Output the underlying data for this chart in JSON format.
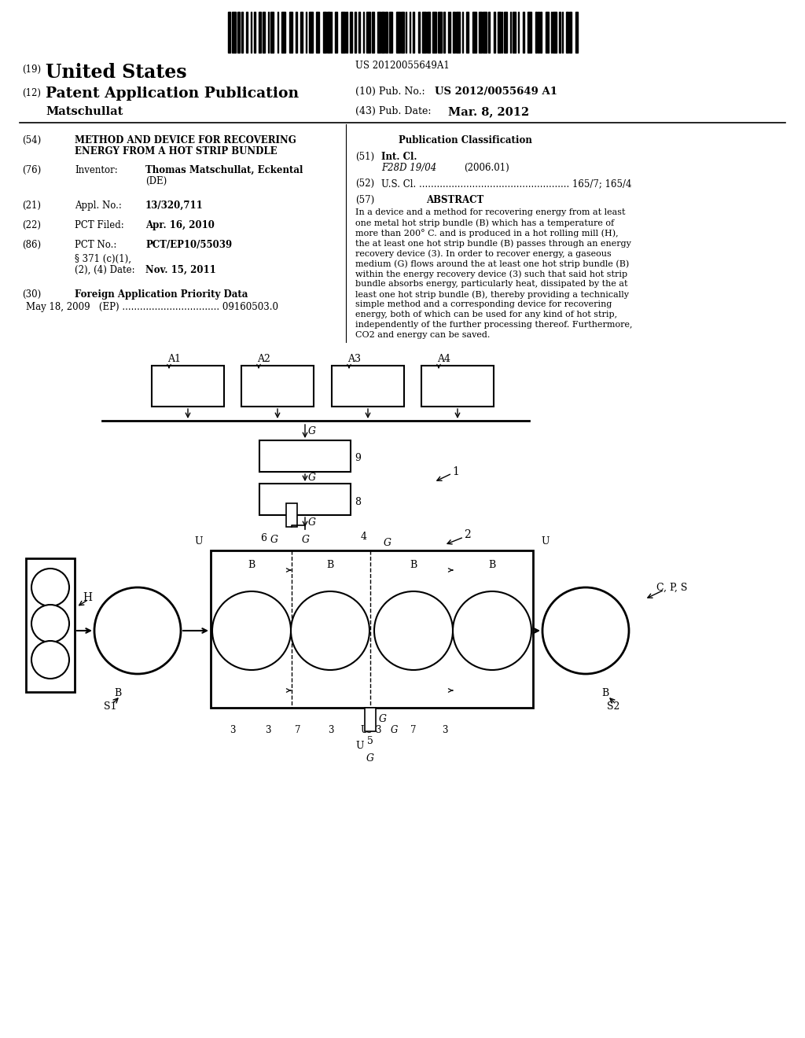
{
  "bg_color": "#ffffff",
  "barcode_text": "US 20120055649A1",
  "title19_num": "(19)",
  "title19_text": "United States",
  "title12_num": "(12)",
  "title12_text": "Patent Application Publication",
  "pub_no_label": "(10) Pub. No.:",
  "pub_no_value": "US 2012/0055649 A1",
  "pub_date_label": "(43) Pub. Date:",
  "pub_date_value": "Mar. 8, 2012",
  "inventor_name": "Matschullat",
  "field54_num": "(54)",
  "field54_line1": "METHOD AND DEVICE FOR RECOVERING",
  "field54_line2": "ENERGY FROM A HOT STRIP BUNDLE",
  "field76_num": "(76)",
  "field76_label": "Inventor:",
  "field76_line1": "Thomas Matschullat, Eckental",
  "field76_line2": "(DE)",
  "field21_num": "(21)",
  "field21_label": "Appl. No.:",
  "field21_value": "13/320,711",
  "field22_num": "(22)",
  "field22_label": "PCT Filed:",
  "field22_value": "Apr. 16, 2010",
  "field86_num": "(86)",
  "field86_label": "PCT No.:",
  "field86_value": "PCT/EP10/55039",
  "field86b_line1": "§ 371 (c)(1),",
  "field86b_line2": "(2), (4) Date:",
  "field86b_value": "Nov. 15, 2011",
  "field30_num": "(30)",
  "field30_label": "Foreign Application Priority Data",
  "field30_value": "May 18, 2009   (EP) ................................. 09160503.0",
  "pub_class_title": "Publication Classification",
  "field51_num": "(51)",
  "field51_label": "Int. Cl.",
  "field51_class": "F28D 19/04",
  "field51_year": "(2006.01)",
  "field52_num": "(52)",
  "field52_label": "U.S. Cl. ................................................... 165/7; 165/4",
  "field57_num": "(57)",
  "field57_label": "ABSTRACT",
  "abstract_lines": [
    "In a device and a method for recovering energy from at least",
    "one metal hot strip bundle (B) which has a temperature of",
    "more than 200° C. and is produced in a hot rolling mill (H),",
    "the at least one hot strip bundle (B) passes through an energy",
    "recovery device (3). In order to recover energy, a gaseous",
    "medium (G) flows around the at least one hot strip bundle (B)",
    "within the energy recovery device (3) such that said hot strip",
    "bundle absorbs energy, particularly heat, dissipated by the at",
    "least one hot strip bundle (B), thereby providing a technically",
    "simple method and a corresponding device for recovering",
    "energy, both of which can be used for any kind of hot strip,",
    "independently of the further processing thereof. Furthermore,",
    "CO2 and energy can be saved."
  ]
}
